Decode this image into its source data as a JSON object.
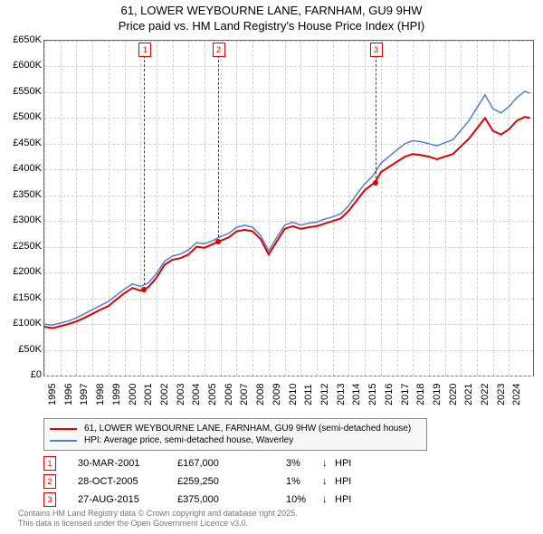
{
  "title_line1": "61, LOWER WEYBOURNE LANE, FARNHAM, GU9 9HW",
  "title_line2": "Price paid vs. HM Land Registry's House Price Index (HPI)",
  "chart": {
    "type": "line",
    "x_start": 1995,
    "x_end": 2025.5,
    "y_start": 0,
    "y_end": 650000,
    "y_ticks": [
      0,
      50000,
      100000,
      150000,
      200000,
      250000,
      300000,
      350000,
      400000,
      450000,
      500000,
      550000,
      600000,
      650000
    ],
    "y_tick_labels": [
      "£0",
      "£50K",
      "£100K",
      "£150K",
      "£200K",
      "£250K",
      "£300K",
      "£350K",
      "£400K",
      "£450K",
      "£500K",
      "£550K",
      "£600K",
      "£650K"
    ],
    "x_ticks": [
      1995,
      1996,
      1997,
      1998,
      1999,
      2000,
      2001,
      2002,
      2003,
      2004,
      2005,
      2006,
      2007,
      2008,
      2009,
      2010,
      2011,
      2012,
      2013,
      2014,
      2015,
      2016,
      2017,
      2018,
      2019,
      2020,
      2021,
      2022,
      2023,
      2024
    ],
    "grid_color": "#d0d0d0",
    "background_color": "#ffffff",
    "series": {
      "red": {
        "color": "#e00000",
        "width": 2,
        "label": "61, LOWER WEYBOURNE LANE, FARNHAM, GU9 9HW (semi-detached house)",
        "points": [
          [
            1995.0,
            95000
          ],
          [
            1995.5,
            92000
          ],
          [
            1996.0,
            96000
          ],
          [
            1996.5,
            100000
          ],
          [
            1997.0,
            105000
          ],
          [
            1997.5,
            112000
          ],
          [
            1998.0,
            120000
          ],
          [
            1998.5,
            128000
          ],
          [
            1999.0,
            135000
          ],
          [
            1999.5,
            148000
          ],
          [
            2000.0,
            160000
          ],
          [
            2000.5,
            170000
          ],
          [
            2001.0,
            165000
          ],
          [
            2001.2,
            167000
          ],
          [
            2001.5,
            172000
          ],
          [
            2002.0,
            190000
          ],
          [
            2002.5,
            215000
          ],
          [
            2003.0,
            225000
          ],
          [
            2003.5,
            228000
          ],
          [
            2004.0,
            235000
          ],
          [
            2004.5,
            250000
          ],
          [
            2005.0,
            248000
          ],
          [
            2005.5,
            255000
          ],
          [
            2005.8,
            259250
          ],
          [
            2006.0,
            262000
          ],
          [
            2006.5,
            268000
          ],
          [
            2007.0,
            280000
          ],
          [
            2007.5,
            283000
          ],
          [
            2008.0,
            280000
          ],
          [
            2008.5,
            265000
          ],
          [
            2009.0,
            235000
          ],
          [
            2009.5,
            260000
          ],
          [
            2010.0,
            285000
          ],
          [
            2010.5,
            290000
          ],
          [
            2011.0,
            285000
          ],
          [
            2011.5,
            288000
          ],
          [
            2012.0,
            290000
          ],
          [
            2012.5,
            295000
          ],
          [
            2013.0,
            300000
          ],
          [
            2013.5,
            305000
          ],
          [
            2014.0,
            320000
          ],
          [
            2014.5,
            340000
          ],
          [
            2015.0,
            360000
          ],
          [
            2015.5,
            372000
          ],
          [
            2015.65,
            375000
          ],
          [
            2016.0,
            395000
          ],
          [
            2016.5,
            405000
          ],
          [
            2017.0,
            415000
          ],
          [
            2017.5,
            425000
          ],
          [
            2018.0,
            430000
          ],
          [
            2018.5,
            428000
          ],
          [
            2019.0,
            425000
          ],
          [
            2019.5,
            420000
          ],
          [
            2020.0,
            425000
          ],
          [
            2020.5,
            430000
          ],
          [
            2021.0,
            445000
          ],
          [
            2021.5,
            460000
          ],
          [
            2022.0,
            480000
          ],
          [
            2022.5,
            500000
          ],
          [
            2023.0,
            475000
          ],
          [
            2023.5,
            468000
          ],
          [
            2024.0,
            478000
          ],
          [
            2024.5,
            495000
          ],
          [
            2025.0,
            502000
          ],
          [
            2025.3,
            500000
          ]
        ]
      },
      "blue": {
        "color": "#5080d0",
        "width": 1.5,
        "label": "HPI: Average price, semi-detached house, Waverley",
        "points": [
          [
            1995.0,
            100000
          ],
          [
            1995.5,
            98000
          ],
          [
            1996.0,
            102000
          ],
          [
            1996.5,
            106000
          ],
          [
            1997.0,
            112000
          ],
          [
            1997.5,
            120000
          ],
          [
            1998.0,
            128000
          ],
          [
            1998.5,
            136000
          ],
          [
            1999.0,
            144000
          ],
          [
            1999.5,
            156000
          ],
          [
            2000.0,
            168000
          ],
          [
            2000.5,
            178000
          ],
          [
            2001.0,
            173000
          ],
          [
            2001.5,
            180000
          ],
          [
            2002.0,
            198000
          ],
          [
            2002.5,
            222000
          ],
          [
            2003.0,
            232000
          ],
          [
            2003.5,
            236000
          ],
          [
            2004.0,
            244000
          ],
          [
            2004.5,
            258000
          ],
          [
            2005.0,
            256000
          ],
          [
            2005.5,
            262000
          ],
          [
            2006.0,
            270000
          ],
          [
            2006.5,
            276000
          ],
          [
            2007.0,
            288000
          ],
          [
            2007.5,
            292000
          ],
          [
            2008.0,
            288000
          ],
          [
            2008.5,
            272000
          ],
          [
            2009.0,
            242000
          ],
          [
            2009.5,
            268000
          ],
          [
            2010.0,
            292000
          ],
          [
            2010.5,
            298000
          ],
          [
            2011.0,
            292000
          ],
          [
            2011.5,
            296000
          ],
          [
            2012.0,
            298000
          ],
          [
            2012.5,
            304000
          ],
          [
            2013.0,
            308000
          ],
          [
            2013.5,
            314000
          ],
          [
            2014.0,
            330000
          ],
          [
            2014.5,
            352000
          ],
          [
            2015.0,
            372000
          ],
          [
            2015.5,
            388000
          ],
          [
            2016.0,
            412000
          ],
          [
            2016.5,
            425000
          ],
          [
            2017.0,
            438000
          ],
          [
            2017.5,
            450000
          ],
          [
            2018.0,
            456000
          ],
          [
            2018.5,
            454000
          ],
          [
            2019.0,
            450000
          ],
          [
            2019.5,
            446000
          ],
          [
            2020.0,
            452000
          ],
          [
            2020.5,
            458000
          ],
          [
            2021.0,
            476000
          ],
          [
            2021.5,
            495000
          ],
          [
            2022.0,
            520000
          ],
          [
            2022.5,
            545000
          ],
          [
            2023.0,
            518000
          ],
          [
            2023.5,
            510000
          ],
          [
            2024.0,
            522000
          ],
          [
            2024.5,
            540000
          ],
          [
            2025.0,
            552000
          ],
          [
            2025.3,
            548000
          ]
        ]
      }
    },
    "sale_markers": [
      {
        "num": "1",
        "year": 2001.24,
        "price": 167000
      },
      {
        "num": "2",
        "year": 2005.82,
        "price": 259250
      },
      {
        "num": "3",
        "year": 2015.65,
        "price": 375000
      }
    ]
  },
  "legend": {
    "items": [
      {
        "color": "#e00000",
        "label": "61, LOWER WEYBOURNE LANE, FARNHAM, GU9 9HW (semi-detached house)"
      },
      {
        "color": "#5080d0",
        "label": "HPI: Average price, semi-detached house, Waverley"
      }
    ]
  },
  "sales": [
    {
      "num": "1",
      "date": "30-MAR-2001",
      "price": "£167,000",
      "pct": "3%",
      "arrow": "↓",
      "hpi": "HPI"
    },
    {
      "num": "2",
      "date": "28-OCT-2005",
      "price": "£259,250",
      "pct": "1%",
      "arrow": "↓",
      "hpi": "HPI"
    },
    {
      "num": "3",
      "date": "27-AUG-2015",
      "price": "£375,000",
      "pct": "10%",
      "arrow": "↓",
      "hpi": "HPI"
    }
  ],
  "footnote_line1": "Contains HM Land Registry data © Crown copyright and database right 2025.",
  "footnote_line2": "This data is licensed under the Open Government Licence v3.0."
}
